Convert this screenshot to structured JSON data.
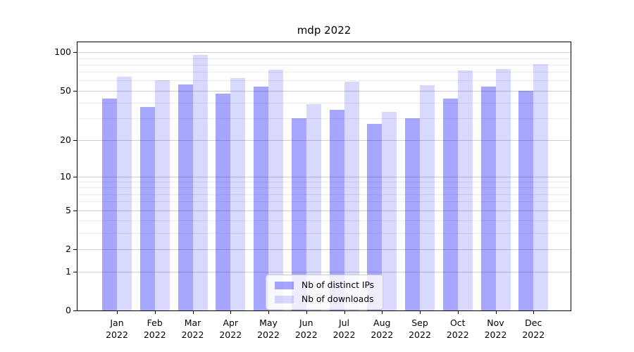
{
  "chart_data": {
    "type": "bar",
    "title": "mdp 2022",
    "categories": [
      "Jan",
      "Feb",
      "Mar",
      "Apr",
      "May",
      "Jun",
      "Jul",
      "Aug",
      "Sep",
      "Oct",
      "Nov",
      "Dec"
    ],
    "category_year": "2022",
    "series": [
      {
        "name": "Nb of distinct IPs",
        "color": "rgba(0,0,255,0.35)",
        "values": [
          43,
          37,
          56,
          47,
          54,
          30,
          35,
          27,
          30,
          43,
          54,
          50
        ]
      },
      {
        "name": "Nb of downloads",
        "color": "rgba(0,0,255,0.15)",
        "values": [
          64,
          60,
          95,
          63,
          73,
          39,
          59,
          34,
          55,
          72,
          74,
          81
        ]
      }
    ],
    "xlabel": "",
    "ylabel": "",
    "yscale": "log1p",
    "ylim": [
      0,
      120
    ],
    "y_major_ticks": [
      0,
      1,
      2,
      5,
      10,
      20,
      50,
      100
    ],
    "y_minor_ticks": [
      3,
      4,
      6,
      7,
      8,
      9,
      30,
      40,
      60,
      70,
      80,
      90
    ],
    "grid": true,
    "legend_position": "lower center"
  },
  "colors": {
    "major_gridline": "#cfcfcf",
    "minor_gridline": "#ececec",
    "axis": "#000000",
    "background": "#ffffff"
  }
}
